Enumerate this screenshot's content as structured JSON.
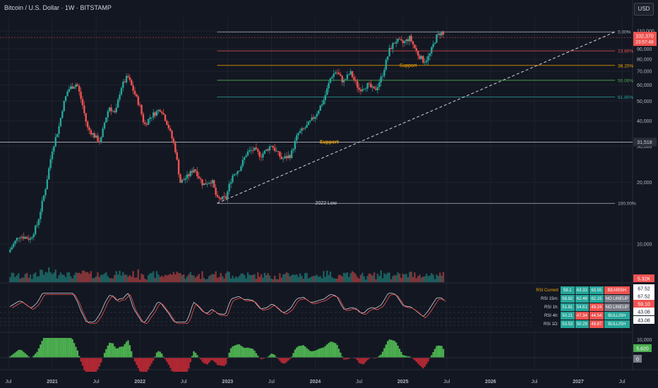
{
  "header": {
    "title": "Bitcoin / U.S. Dollar · 1W · BITSTAMP",
    "currency_button": "USD"
  },
  "colors": {
    "background": "#131722",
    "up": "#26a69a",
    "down": "#ef5350",
    "grid": "#1e222d",
    "text": "#b2b5be",
    "fib_23": "#ef5350",
    "fib_38": "#f7a600",
    "fib_50": "#4caf50",
    "fib_61": "#26a69a",
    "support": "#f7a600"
  },
  "chart_data": {
    "type": "candlestick",
    "x_axis": {
      "ticks": [
        "Jul",
        "2021",
        "Jul",
        "2022",
        "Jul",
        "2023",
        "Jul",
        "2024",
        "Jul",
        "2025",
        "Jul",
        "2026",
        "Jul",
        "2027",
        "Jul"
      ]
    },
    "y_axis": {
      "scale": "log",
      "range": [
        6500,
        128000
      ],
      "ticks": [
        "10,000",
        "20,000",
        "30,000",
        "40,000",
        "50,000",
        "60,000",
        "70,000",
        "80,000",
        "90,000",
        "110,000"
      ]
    },
    "price_path": [
      [
        2020.5,
        9100
      ],
      [
        2020.62,
        11000
      ],
      [
        2020.75,
        10600
      ],
      [
        2020.83,
        12500
      ],
      [
        2020.92,
        18500
      ],
      [
        2021.0,
        29000
      ],
      [
        2021.08,
        38000
      ],
      [
        2021.12,
        47000
      ],
      [
        2021.18,
        57000
      ],
      [
        2021.28,
        61000
      ],
      [
        2021.34,
        49000
      ],
      [
        2021.4,
        37000
      ],
      [
        2021.5,
        33000
      ],
      [
        2021.55,
        31500
      ],
      [
        2021.6,
        40000
      ],
      [
        2021.65,
        47000
      ],
      [
        2021.72,
        43000
      ],
      [
        2021.78,
        58000
      ],
      [
        2021.86,
        66000
      ],
      [
        2021.92,
        57000
      ],
      [
        2022.0,
        47000
      ],
      [
        2022.05,
        38000
      ],
      [
        2022.12,
        42000
      ],
      [
        2022.24,
        46000
      ],
      [
        2022.32,
        38000
      ],
      [
        2022.4,
        29500
      ],
      [
        2022.46,
        20000
      ],
      [
        2022.55,
        21500
      ],
      [
        2022.62,
        23500
      ],
      [
        2022.72,
        19500
      ],
      [
        2022.82,
        20500
      ],
      [
        2022.88,
        16500
      ],
      [
        2022.98,
        16800
      ],
      [
        2023.05,
        21500
      ],
      [
        2023.14,
        23500
      ],
      [
        2023.22,
        28000
      ],
      [
        2023.3,
        29000
      ],
      [
        2023.38,
        27000
      ],
      [
        2023.5,
        30500
      ],
      [
        2023.62,
        26000
      ],
      [
        2023.72,
        27200
      ],
      [
        2023.8,
        34500
      ],
      [
        2023.9,
        37500
      ],
      [
        2024.0,
        42500
      ],
      [
        2024.1,
        51000
      ],
      [
        2024.18,
        66000
      ],
      [
        2024.24,
        70000
      ],
      [
        2024.32,
        62000
      ],
      [
        2024.4,
        69000
      ],
      [
        2024.5,
        57000
      ],
      [
        2024.6,
        60000
      ],
      [
        2024.68,
        56000
      ],
      [
        2024.76,
        66000
      ],
      [
        2024.85,
        90000
      ],
      [
        2024.92,
        99000
      ],
      [
        2025.0,
        96000
      ],
      [
        2025.08,
        102000
      ],
      [
        2025.16,
        86000
      ],
      [
        2025.24,
        78000
      ],
      [
        2025.3,
        83000
      ],
      [
        2025.38,
        103000
      ],
      [
        2025.44,
        109000
      ],
      [
        2025.48,
        102370
      ]
    ],
    "last_price": "102,370",
    "countdown": "23:57:48",
    "fibonacci": [
      {
        "level": "0.00%",
        "price": 109000
      },
      {
        "level": "23.60%",
        "price": 88000
      },
      {
        "level": "38.20%",
        "price": 74700
      },
      {
        "level": "50.00%",
        "price": 63200
      },
      {
        "level": "61.80%",
        "price": 52400
      },
      {
        "level": "100.00%",
        "price": 15800
      }
    ],
    "support_lines": [
      {
        "label": "Support",
        "price": 74700
      },
      {
        "label": "Support",
        "price": 31518
      }
    ],
    "support_price_label": "31,518",
    "low_label": "2022 Low",
    "volume_label": "5.32K",
    "rsi_labels": [
      "67.52",
      "67.52",
      "59.10",
      "43.08",
      "43.08"
    ],
    "osc_axis": [
      "10,000",
      "0"
    ],
    "osc_label": "5,620",
    "rsi_table": [
      {
        "label": "RSI Current",
        "v1": "59.1",
        "v2": "63.33",
        "v3": "63.55",
        "signal": "BEARISH"
      },
      {
        "label": "RSI 15m:",
        "v1": "58.82",
        "v2": "62.46",
        "v3": "62.15",
        "signal": "NO LINEUP"
      },
      {
        "label": "RSI 1h:",
        "v1": "51.81",
        "v2": "54.61",
        "v3": "49.24",
        "signal": "NO LINEUP"
      },
      {
        "label": "RSI 4h:",
        "v1": "50.21",
        "v2": "47.34",
        "v3": "44.54",
        "signal": "BULLISH"
      },
      {
        "label": "RSI 1D:",
        "v1": "53.53",
        "v2": "50.29",
        "v3": "49.87",
        "signal": "BULLISH"
      }
    ]
  }
}
